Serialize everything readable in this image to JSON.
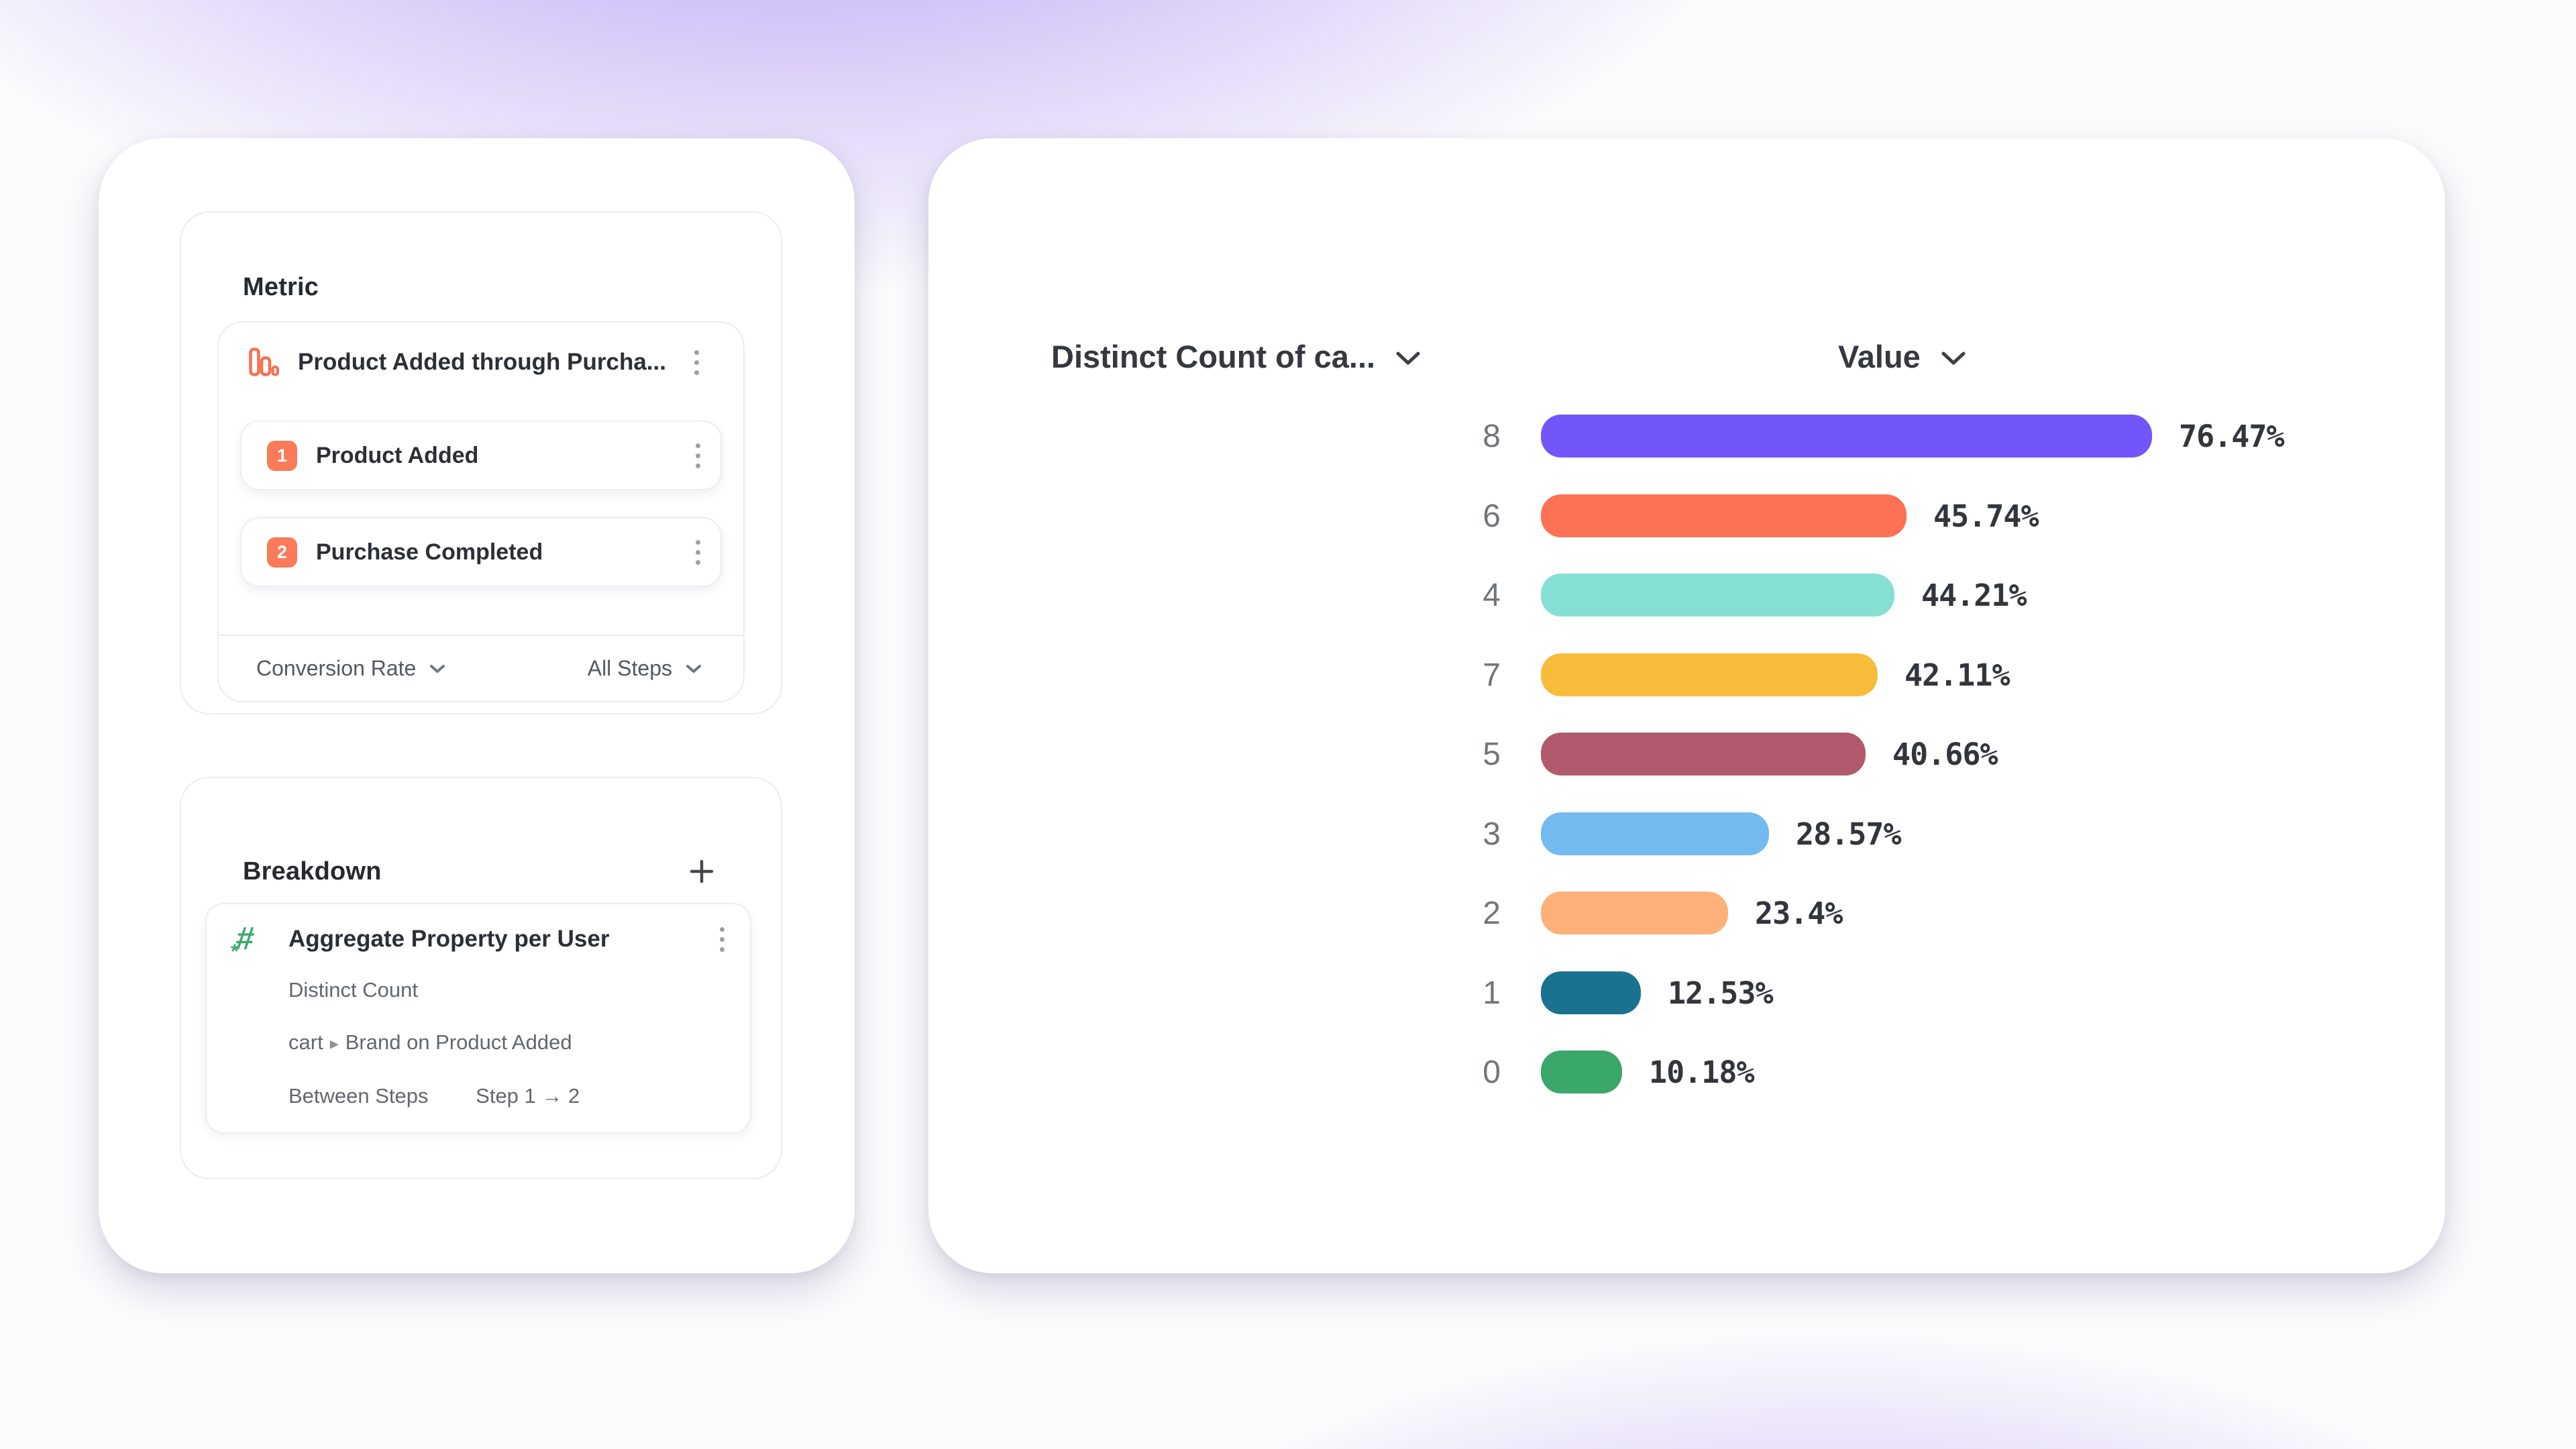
{
  "theme": {
    "badge_color": "#FA7A5A",
    "metric_icon_color": "#F7714F",
    "hash_icon_color": "#3BA96D"
  },
  "left_panel": {
    "metric_section": {
      "title": "Metric",
      "metric_row": {
        "icon": "funnel-bar-chart-icon",
        "title": "Product Added through Purcha...",
        "menu_icon": "kebab-menu-icon"
      },
      "steps": [
        {
          "number": "1",
          "label": "Product Added"
        },
        {
          "number": "2",
          "label": "Purchase Completed"
        }
      ],
      "footer": {
        "measure_dropdown": "Conversion Rate",
        "steps_dropdown": "All Steps"
      }
    },
    "breakdown_section": {
      "title": "Breakdown",
      "add_icon": "plus-icon",
      "property_card": {
        "icon": "numeric-property-icon",
        "title": "Aggregate Property per User",
        "aggregation": "Distinct Count",
        "property_prefix": "cart",
        "property_separator": "▸",
        "property_suffix": "Brand on Product Added",
        "between_steps_label": "Between Steps",
        "between_steps_value": "Step 1 → 2"
      }
    }
  },
  "chart_panel": {
    "category_column_header": "Distinct Count of ca...",
    "value_column_header": "Value"
  },
  "chart_data": {
    "type": "bar",
    "orientation": "horizontal",
    "title": "",
    "xlabel": "",
    "ylabel": "Distinct Count of ca...",
    "xlim": [
      0,
      100
    ],
    "grid": false,
    "legend": false,
    "column_headers": [
      "Distinct Count of ca...",
      "Value"
    ],
    "categories": [
      "8",
      "6",
      "4",
      "7",
      "5",
      "3",
      "2",
      "1",
      "0"
    ],
    "values": [
      76.47,
      45.74,
      44.21,
      42.11,
      40.66,
      28.57,
      23.4,
      12.53,
      10.18
    ],
    "value_labels": [
      "76.47%",
      "45.74%",
      "44.21%",
      "42.11%",
      "40.66%",
      "28.57%",
      "23.4%",
      "12.53%",
      "10.18%"
    ],
    "colors": [
      "#7356FA",
      "#FD7155",
      "#85E0D3",
      "#F8BC3B",
      "#B15A6E",
      "#72BAF0",
      "#FDB078",
      "#1A7290",
      "#3AA76B"
    ]
  }
}
